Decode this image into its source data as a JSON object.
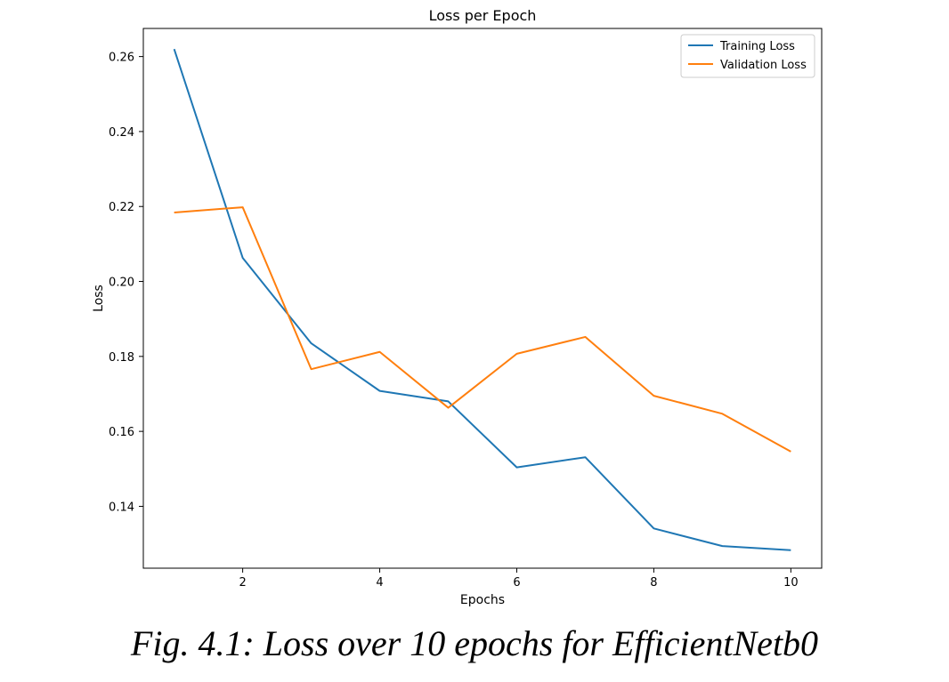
{
  "chart_data": {
    "type": "line",
    "title": "Loss per Epoch",
    "xlabel": "Epochs",
    "ylabel": "Loss",
    "xlim": [
      0.55,
      10.45
    ],
    "ylim": [
      0.1235,
      0.2675
    ],
    "xticks": [
      2,
      4,
      6,
      8,
      10
    ],
    "xtick_labels": [
      "2",
      "4",
      "6",
      "8",
      "10"
    ],
    "yticks": [
      0.14,
      0.16,
      0.18,
      0.2,
      0.22,
      0.24,
      0.26
    ],
    "ytick_labels": [
      "0.14",
      "0.16",
      "0.18",
      "0.20",
      "0.22",
      "0.24",
      "0.26"
    ],
    "grid": false,
    "legend_position": "top-right",
    "x": [
      1,
      2,
      3,
      4,
      5,
      6,
      7,
      8,
      9,
      10
    ],
    "series": [
      {
        "name": "Training Loss",
        "color": "#1f77b4",
        "values": [
          0.262,
          0.2063,
          0.1835,
          0.1708,
          0.168,
          0.1504,
          0.1531,
          0.1341,
          0.1294,
          0.1283
        ]
      },
      {
        "name": "Validation Loss",
        "color": "#ff7f0e",
        "values": [
          0.2184,
          0.2198,
          0.1766,
          0.1812,
          0.1663,
          0.1807,
          0.1852,
          0.1695,
          0.1647,
          0.1546
        ]
      }
    ]
  },
  "caption": "Fig. 4.1: Loss over 10 epochs for EfficientNetb0"
}
